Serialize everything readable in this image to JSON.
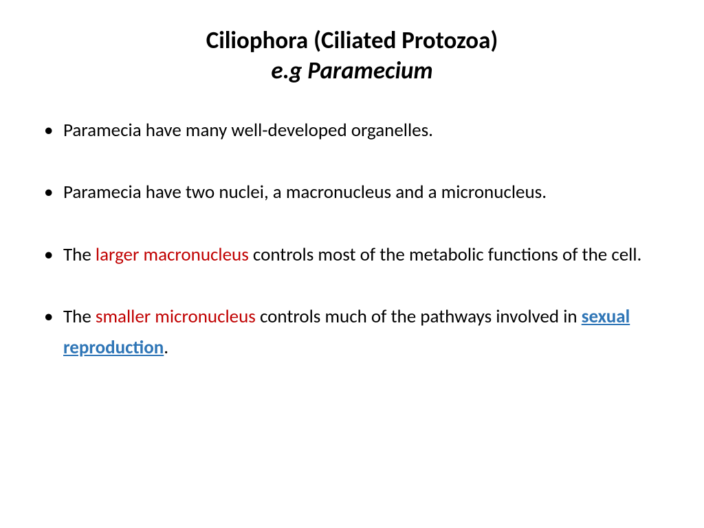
{
  "title": {
    "line1": "Ciliophora (Ciliated Protozoa)",
    "line2": "e.g Paramecium"
  },
  "bullets": [
    {
      "segments": [
        {
          "text": "Paramecia have many well-developed organelles.",
          "style": "plain"
        }
      ]
    },
    {
      "segments": [
        {
          "text": "Paramecia have two nuclei, a macronucleus and a micronucleus.",
          "style": "plain"
        }
      ]
    },
    {
      "segments": [
        {
          "text": "The ",
          "style": "plain"
        },
        {
          "text": "larger macronucleus",
          "style": "red"
        },
        {
          "text": " controls most of the metabolic functions of the cell.",
          "style": "plain"
        }
      ]
    },
    {
      "segments": [
        {
          "text": "The ",
          "style": "plain"
        },
        {
          "text": "smaller micronucleus",
          "style": "red"
        },
        {
          "text": " controls much of the pathways involved in ",
          "style": "plain"
        },
        {
          "text": "sexual reproduction",
          "style": "link"
        },
        {
          "text": ".",
          "style": "plain"
        }
      ]
    }
  ],
  "colors": {
    "text": "#000000",
    "highlight_red": "#c00000",
    "link_blue": "#2e75b6",
    "background": "#ffffff"
  },
  "typography": {
    "title_fontsize": 35,
    "title_weight": 700,
    "body_fontsize": 27,
    "line_height": 1.65,
    "font_family": "Calibri"
  }
}
